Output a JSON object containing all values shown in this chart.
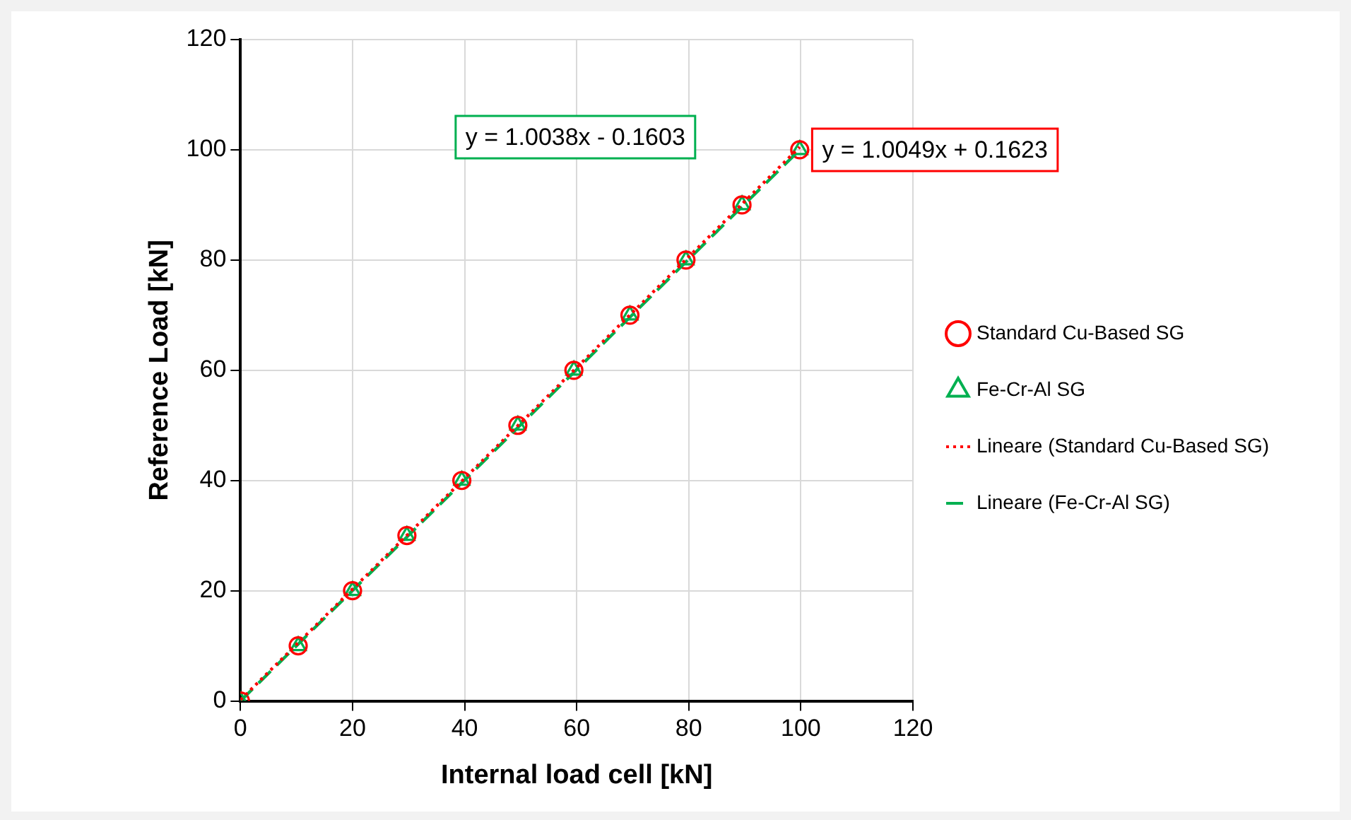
{
  "chart_data": {
    "type": "scatter",
    "xlabel": "Internal load cell [kN]",
    "ylabel": "Reference Load [kN]",
    "xlim": [
      0,
      120
    ],
    "xticks": [
      0,
      20,
      40,
      60,
      80,
      100,
      120
    ],
    "ylim": [
      0,
      120
    ],
    "yticks": [
      0,
      20,
      40,
      60,
      80,
      100,
      120
    ],
    "grid": true,
    "legend": "right",
    "series": [
      {
        "name": "Standard Cu-Based SG",
        "marker": "circle",
        "color": "#ff0000",
        "x": [
          0,
          10.3,
          20,
          29.7,
          39.5,
          49.5,
          59.5,
          69.5,
          79.5,
          89.5,
          99.8
        ],
        "values": [
          0,
          10,
          20,
          30,
          40,
          50,
          60,
          70,
          80,
          90,
          100
        ]
      },
      {
        "name": "Fe-Cr-Al SG",
        "marker": "triangle",
        "color": "#00b050",
        "x": [
          0,
          10.3,
          20,
          29.7,
          39.5,
          49.5,
          59.5,
          69.5,
          79.5,
          89.5,
          99.8
        ],
        "values": [
          0,
          10,
          20,
          30,
          40,
          50,
          60,
          70,
          80,
          90,
          100
        ]
      },
      {
        "name": "Lineare (Standard Cu-Based SG)",
        "type": "line",
        "line_style": "dotted",
        "color": "#ff0000",
        "x": [
          0,
          99.8
        ],
        "values": [
          0.2,
          100.5
        ]
      },
      {
        "name": "Lineare (Fe-Cr-Al SG)",
        "type": "line",
        "line_style": "dashed",
        "color": "#00b050",
        "x": [
          0,
          99.8
        ],
        "values": [
          0,
          100
        ]
      }
    ],
    "annotations": [
      {
        "text": "y = 1.0049x + 0.1623",
        "x": 100,
        "y": 100
      },
      "y = 1.0038x - 0.1603"
    ]
  }
}
